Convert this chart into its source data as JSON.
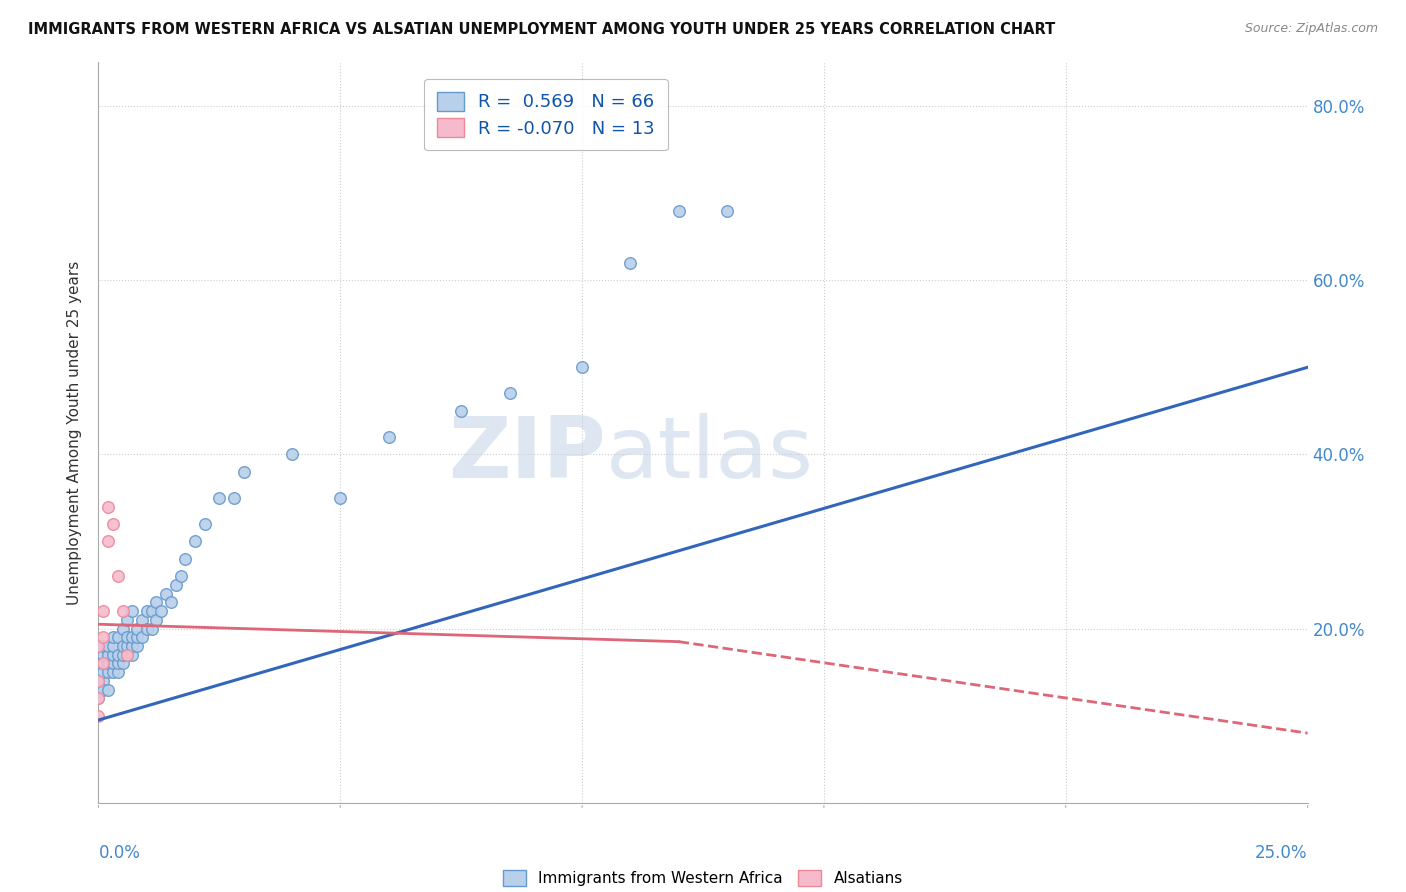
{
  "title": "IMMIGRANTS FROM WESTERN AFRICA VS ALSATIAN UNEMPLOYMENT AMONG YOUTH UNDER 25 YEARS CORRELATION CHART",
  "source": "Source: ZipAtlas.com",
  "ylabel": "Unemployment Among Youth under 25 years",
  "blue_R": 0.569,
  "blue_N": 66,
  "pink_R": -0.07,
  "pink_N": 13,
  "blue_color": "#6699CC",
  "blue_fill": "#B8D0EA",
  "pink_color": "#EE8899",
  "pink_fill": "#F5BBCC",
  "line_blue": "#3366BB",
  "line_pink": "#DD6677",
  "watermark_color": "#C8D8E8",
  "ytick_vals": [
    0.0,
    0.2,
    0.4,
    0.6,
    0.8
  ],
  "ytick_labels": [
    "",
    "20.0%",
    "40.0%",
    "60.0%",
    "80.0%"
  ],
  "xmin": 0.0,
  "xmax": 0.25,
  "ymin": 0.0,
  "ymax": 0.85,
  "blue_x": [
    0.0,
    0.0,
    0.0,
    0.001,
    0.001,
    0.001,
    0.001,
    0.001,
    0.001,
    0.002,
    0.002,
    0.002,
    0.002,
    0.002,
    0.003,
    0.003,
    0.003,
    0.003,
    0.003,
    0.004,
    0.004,
    0.004,
    0.004,
    0.005,
    0.005,
    0.005,
    0.005,
    0.006,
    0.006,
    0.006,
    0.006,
    0.007,
    0.007,
    0.007,
    0.007,
    0.008,
    0.008,
    0.008,
    0.009,
    0.009,
    0.01,
    0.01,
    0.011,
    0.011,
    0.012,
    0.012,
    0.013,
    0.014,
    0.015,
    0.016,
    0.017,
    0.018,
    0.02,
    0.022,
    0.025,
    0.028,
    0.03,
    0.04,
    0.05,
    0.06,
    0.075,
    0.085,
    0.1,
    0.11,
    0.12,
    0.13
  ],
  "blue_y": [
    0.12,
    0.13,
    0.14,
    0.14,
    0.15,
    0.16,
    0.17,
    0.18,
    0.13,
    0.15,
    0.16,
    0.17,
    0.18,
    0.13,
    0.15,
    0.16,
    0.17,
    0.18,
    0.19,
    0.15,
    0.16,
    0.17,
    0.19,
    0.16,
    0.17,
    0.18,
    0.2,
    0.17,
    0.18,
    0.19,
    0.21,
    0.17,
    0.18,
    0.19,
    0.22,
    0.18,
    0.19,
    0.2,
    0.19,
    0.21,
    0.2,
    0.22,
    0.2,
    0.22,
    0.21,
    0.23,
    0.22,
    0.24,
    0.23,
    0.25,
    0.26,
    0.28,
    0.3,
    0.32,
    0.35,
    0.35,
    0.38,
    0.4,
    0.35,
    0.42,
    0.45,
    0.47,
    0.5,
    0.62,
    0.68,
    0.68
  ],
  "pink_x": [
    0.0,
    0.0,
    0.0,
    0.0,
    0.001,
    0.001,
    0.001,
    0.002,
    0.002,
    0.003,
    0.004,
    0.005,
    0.006
  ],
  "pink_y": [
    0.12,
    0.14,
    0.18,
    0.1,
    0.16,
    0.19,
    0.22,
    0.3,
    0.34,
    0.32,
    0.26,
    0.22,
    0.17
  ],
  "blue_line_x0": 0.0,
  "blue_line_y0": 0.095,
  "blue_line_x1": 0.25,
  "blue_line_y1": 0.5,
  "pink_line_x0": 0.0,
  "pink_line_y0": 0.205,
  "pink_line_x1": 0.25,
  "pink_line_y1": 0.08
}
